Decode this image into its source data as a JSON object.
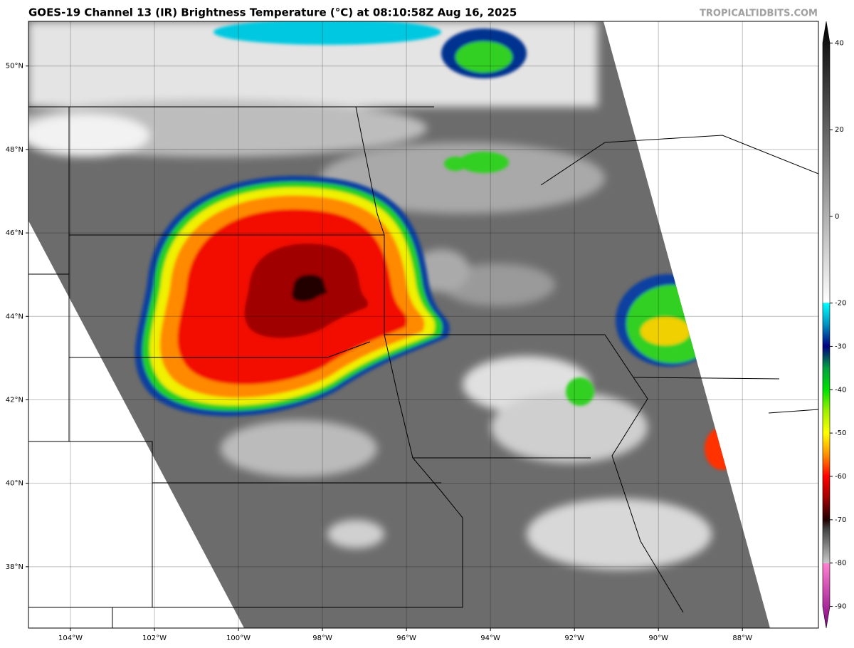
{
  "header": {
    "title": "GOES-19 Channel 13 (IR) Brightness Temperature (°C) at 08:10:58Z Aug 16, 2025",
    "watermark": "TROPICALTIDBITS.COM"
  },
  "map": {
    "lon_lim": [
      -105,
      -86.19
    ],
    "lat_lim": [
      36.53,
      51.07
    ],
    "lat_ticks": [
      {
        "value": 50,
        "label": "50°N"
      },
      {
        "value": 48,
        "label": "48°N"
      },
      {
        "value": 46,
        "label": "46°N"
      },
      {
        "value": 44,
        "label": "44°N"
      },
      {
        "value": 42,
        "label": "42°N"
      },
      {
        "value": 40,
        "label": "40°N"
      },
      {
        "value": 38,
        "label": "38°N"
      }
    ],
    "lon_ticks": [
      {
        "value": -104,
        "label": "104°W"
      },
      {
        "value": -102,
        "label": "102°W"
      },
      {
        "value": -100,
        "label": "100°W"
      },
      {
        "value": -98,
        "label": "98°W"
      },
      {
        "value": -96,
        "label": "96°W"
      },
      {
        "value": -94,
        "label": "94°W"
      },
      {
        "value": -92,
        "label": "92°W"
      },
      {
        "value": -90,
        "label": "90°W"
      },
      {
        "value": -88,
        "label": "88°W"
      }
    ]
  },
  "colorbar": {
    "lim": [
      -95,
      45
    ],
    "ticks": [
      40,
      20,
      0,
      -20,
      -30,
      -40,
      -50,
      -60,
      -70,
      -80,
      -90
    ],
    "stops": [
      [
        45,
        "#000000"
      ],
      [
        -19.9,
        "#ffffff"
      ],
      [
        -20,
        "#00ffff"
      ],
      [
        -25,
        "#0090c0"
      ],
      [
        -30,
        "#000080"
      ],
      [
        -35,
        "#00a040"
      ],
      [
        -40,
        "#00e000"
      ],
      [
        -45,
        "#a0f000"
      ],
      [
        -50,
        "#ffff00"
      ],
      [
        -55,
        "#ff9000"
      ],
      [
        -60,
        "#ff0000"
      ],
      [
        -65,
        "#a00000"
      ],
      [
        -70,
        "#200000"
      ],
      [
        -72,
        "#404040"
      ],
      [
        -80,
        "#c8c8c8"
      ],
      [
        -80.1,
        "#ff80d0"
      ],
      [
        -95,
        "#800080"
      ]
    ]
  }
}
